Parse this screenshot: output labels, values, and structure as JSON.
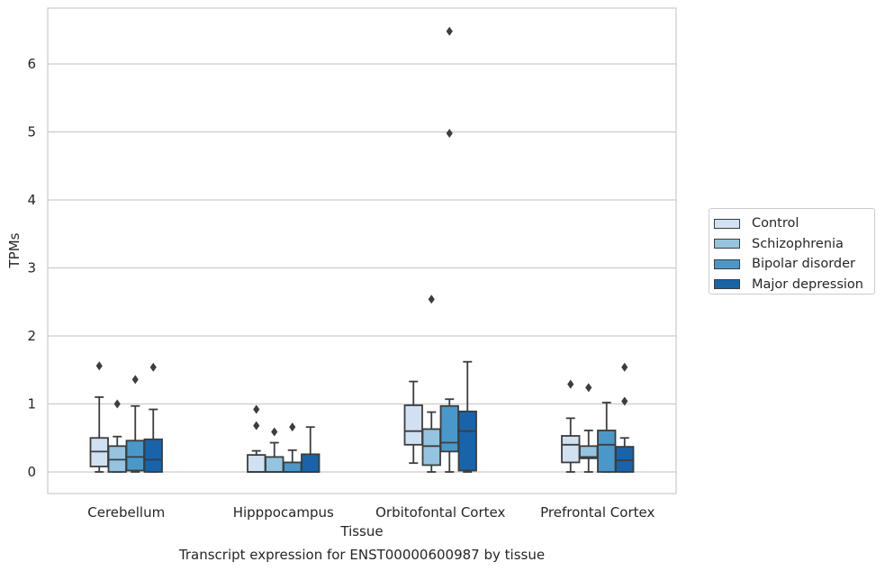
{
  "caption": "Transcript expression for ENST00000600987 by tissue",
  "chart_data": {
    "type": "box",
    "xlabel": "Tissue",
    "ylabel": "TPMs",
    "ylim": [
      -0.32,
      6.82
    ],
    "yticks": [
      0,
      1,
      2,
      3,
      4,
      5,
      6
    ],
    "grid": "horizontal",
    "legend_position": "right",
    "categories": [
      "Cerebellum",
      "Hipppocampus",
      "Orbitofontal Cortex",
      "Prefrontal Cortex"
    ],
    "series": [
      {
        "name": "Control",
        "color": "#d0e1f2",
        "boxes": [
          {
            "whislo": 0.0,
            "q1": 0.08,
            "med": 0.3,
            "q3": 0.5,
            "whishi": 1.1,
            "fliers": [
              1.56
            ]
          },
          {
            "whislo": 0.0,
            "q1": 0.0,
            "med": 0.0,
            "q3": 0.25,
            "whishi": 0.31,
            "fliers": [
              0.68,
              0.92
            ]
          },
          {
            "whislo": 0.13,
            "q1": 0.4,
            "med": 0.6,
            "q3": 0.98,
            "whishi": 1.33,
            "fliers": []
          },
          {
            "whislo": 0.0,
            "q1": 0.14,
            "med": 0.4,
            "q3": 0.53,
            "whishi": 0.79,
            "fliers": [
              1.29
            ]
          }
        ]
      },
      {
        "name": "Schizophrenia",
        "color": "#94c4df",
        "boxes": [
          {
            "whislo": 0.0,
            "q1": 0.0,
            "med": 0.18,
            "q3": 0.38,
            "whishi": 0.52,
            "fliers": [
              1.0
            ]
          },
          {
            "whislo": 0.0,
            "q1": 0.0,
            "med": 0.0,
            "q3": 0.22,
            "whishi": 0.43,
            "fliers": [
              0.59
            ]
          },
          {
            "whislo": 0.0,
            "q1": 0.1,
            "med": 0.38,
            "q3": 0.63,
            "whishi": 0.88,
            "fliers": [
              2.54
            ]
          },
          {
            "whislo": 0.0,
            "q1": 0.2,
            "med": 0.22,
            "q3": 0.38,
            "whishi": 0.61,
            "fliers": [
              1.24
            ]
          }
        ]
      },
      {
        "name": "Bipolar disorder",
        "color": "#4a98c9",
        "boxes": [
          {
            "whislo": 0.0,
            "q1": 0.02,
            "med": 0.22,
            "q3": 0.46,
            "whishi": 0.97,
            "fliers": [
              1.36
            ]
          },
          {
            "whislo": 0.0,
            "q1": 0.0,
            "med": 0.0,
            "q3": 0.14,
            "whishi": 0.32,
            "fliers": [
              0.66
            ]
          },
          {
            "whislo": 0.0,
            "q1": 0.3,
            "med": 0.43,
            "q3": 0.97,
            "whishi": 1.07,
            "fliers": [
              4.98,
              6.48
            ]
          },
          {
            "whislo": 0.0,
            "q1": 0.0,
            "med": 0.4,
            "q3": 0.61,
            "whishi": 1.02,
            "fliers": []
          }
        ]
      },
      {
        "name": "Major depression",
        "color": "#1764ab",
        "boxes": [
          {
            "whislo": 0.0,
            "q1": 0.0,
            "med": 0.18,
            "q3": 0.48,
            "whishi": 0.92,
            "fliers": [
              1.54
            ]
          },
          {
            "whislo": 0.0,
            "q1": 0.0,
            "med": 0.0,
            "q3": 0.26,
            "whishi": 0.66,
            "fliers": []
          },
          {
            "whislo": 0.0,
            "q1": 0.02,
            "med": 0.6,
            "q3": 0.89,
            "whishi": 1.62,
            "fliers": []
          },
          {
            "whislo": 0.0,
            "q1": 0.0,
            "med": 0.17,
            "q3": 0.37,
            "whishi": 0.5,
            "fliers": [
              1.04,
              1.54
            ]
          }
        ]
      }
    ]
  }
}
